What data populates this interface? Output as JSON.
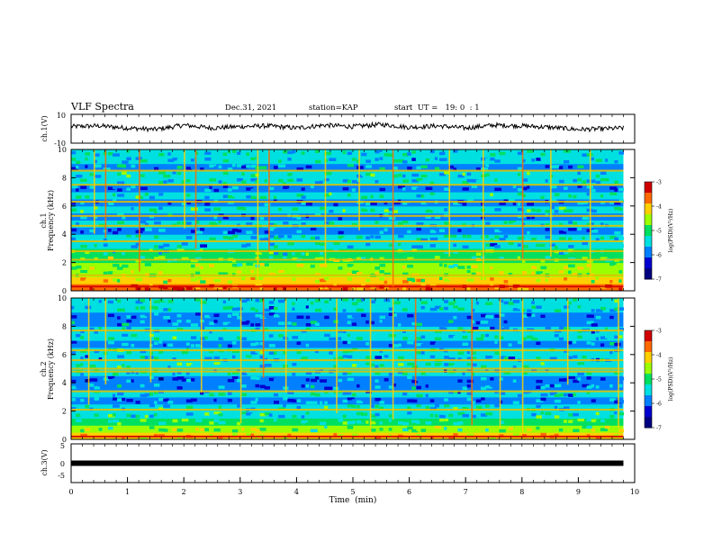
{
  "header": {
    "title": "VLF Spectra",
    "date": "Dec.31, 2021",
    "station": "station=KAP",
    "start": "start  UT =   19: 0  : 1"
  },
  "colorbar": {
    "label": "log(PSD)(V²/Hz)",
    "ticks": [
      "-3",
      "-4",
      "-5",
      "-6",
      "-7"
    ],
    "colors": [
      "#d00000",
      "#ff6a00",
      "#ffd000",
      "#9cff00",
      "#00e060",
      "#00e0e0",
      "#0080ff",
      "#0000d0",
      "#000080"
    ]
  },
  "chart_data": [
    {
      "type": "line",
      "name": "ch1-waveform",
      "ylabel": "ch.1(V)",
      "ylim": [
        -10,
        10
      ],
      "yticks": [
        "10",
        "-10"
      ],
      "xlim": [
        0,
        10
      ],
      "note_values": "waveform fluctuates roughly between -4 and +4 V around a slightly positive mean",
      "x": [
        0,
        0.5,
        1,
        1.5,
        2,
        2.5,
        3,
        3.5,
        4,
        4.5,
        5,
        5.5,
        6,
        6.5,
        7,
        7.5,
        8,
        8.5,
        9,
        9.5,
        9.8
      ],
      "y": [
        1.5,
        2.0,
        0.5,
        -0.5,
        2.5,
        0.5,
        1.5,
        2.0,
        0.5,
        2.5,
        1.5,
        3.0,
        1.0,
        2.0,
        0.5,
        2.5,
        2.0,
        1.0,
        -0.5,
        0.0,
        0.5
      ]
    },
    {
      "type": "heatmap",
      "name": "ch1-spectrogram",
      "ylabel": "Frequency (kHz)",
      "channel_label": "ch.1",
      "ylim": [
        0,
        10
      ],
      "yticks": [
        "0",
        "2",
        "4",
        "6",
        "8",
        "10"
      ],
      "xlim": [
        0,
        9.8
      ],
      "zlim": [
        -7,
        -3
      ],
      "freq_bands_kHz": [
        0,
        0.5,
        1,
        1.5,
        2,
        2.5,
        3,
        3.5,
        4,
        4.5,
        5,
        5.5,
        6,
        6.5,
        7,
        7.5,
        8,
        8.5,
        9,
        9.5
      ],
      "band_log_psd": [
        -3.5,
        -4.2,
        -4.5,
        -4.6,
        -4.9,
        -5.2,
        -5.7,
        -5.5,
        -6.0,
        -5.5,
        -5.8,
        -5.3,
        -6.0,
        -5.3,
        -6.0,
        -5.5,
        -5.3,
        -5.8,
        -5.6,
        -5.4
      ],
      "lines_kHz": [
        0.3,
        1.1,
        2.2,
        2.8,
        3.5,
        4.6,
        5.3,
        6.3,
        7.5,
        8.5
      ],
      "vertical_spike_times_min": [
        0.4,
        0.6,
        1.2,
        2.0,
        2.2,
        3.3,
        3.5,
        4.5,
        5.1,
        5.7,
        6.7,
        7.3,
        8.0,
        8.5,
        9.2
      ]
    },
    {
      "type": "heatmap",
      "name": "ch2-spectrogram",
      "ylabel": "Frequency (kHz)",
      "channel_label": "ch.2",
      "ylim": [
        0,
        10
      ],
      "yticks": [
        "0",
        "2",
        "4",
        "6",
        "8",
        "10"
      ],
      "xlim": [
        0,
        9.8
      ],
      "zlim": [
        -7,
        -3
      ],
      "freq_bands_kHz": [
        0,
        0.5,
        1,
        1.5,
        2,
        2.5,
        3,
        3.5,
        4,
        4.5,
        5,
        5.5,
        6,
        6.5,
        7,
        7.5,
        8,
        8.5,
        9,
        9.5
      ],
      "band_log_psd": [
        -4.0,
        -4.7,
        -5.0,
        -5.3,
        -5.4,
        -6.0,
        -5.6,
        -5.9,
        -6.1,
        -5.6,
        -5.3,
        -5.7,
        -5.4,
        -5.9,
        -5.4,
        -5.6,
        -5.9,
        -6.0,
        -5.6,
        -5.4
      ],
      "lines_kHz": [
        0.2,
        2.1,
        3.4,
        4.8,
        5.0,
        5.6,
        6.3,
        7.7
      ],
      "vertical_spike_times_min": [
        0.3,
        0.6,
        1.4,
        2.3,
        3.0,
        3.4,
        3.8,
        4.7,
        5.3,
        5.7,
        6.1,
        7.1,
        7.6,
        8.0,
        8.8,
        9.7
      ]
    },
    {
      "type": "line",
      "name": "ch3-waveform",
      "ylabel": "ch.3(V)",
      "ylim": [
        -5,
        5
      ],
      "yticks": [
        "5",
        "0",
        "-5"
      ],
      "xlim": [
        0,
        10
      ],
      "x": [
        0,
        9.8
      ],
      "y": [
        0,
        0
      ],
      "xlabel": "Time  (min)",
      "xticks": [
        "0",
        "1",
        "2",
        "3",
        "4",
        "5",
        "6",
        "7",
        "8",
        "9",
        "10"
      ]
    }
  ]
}
